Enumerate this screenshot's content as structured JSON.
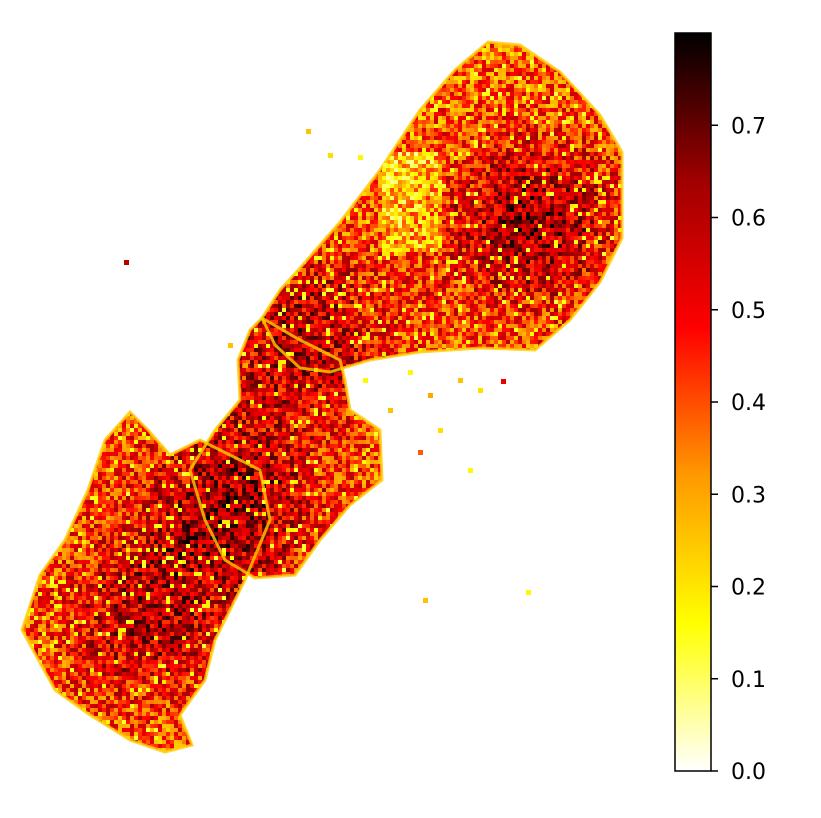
{
  "chart_data": {
    "type": "heatmap",
    "title": "",
    "xlabel": "",
    "ylabel": "",
    "axes_visible": false,
    "colormap": {
      "name": "hot_r",
      "stops": [
        "#ffffff",
        "#ffff00",
        "#ff9900",
        "#ff0000",
        "#a00000",
        "#000000"
      ]
    },
    "colorbar": {
      "orientation": "vertical",
      "location": "right",
      "range": [
        0.0,
        0.8
      ],
      "ticks": [
        0.0,
        0.1,
        0.2,
        0.3,
        0.4,
        0.5,
        0.6,
        0.7
      ],
      "tick_labels": [
        "0.0",
        "0.1",
        "0.2",
        "0.3",
        "0.4",
        "0.5",
        "0.6",
        "0.7"
      ]
    },
    "description_values": {
      "min_value": 0.0,
      "max_value": 0.8
    }
  }
}
